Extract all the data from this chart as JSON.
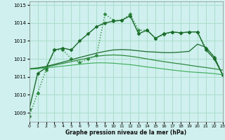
{
  "xlabel": "Graphe pression niveau de la mer (hPa)",
  "bg_color": "#cff0ee",
  "grid_color": "#aaddcc",
  "xlim": [
    0,
    23
  ],
  "ylim": [
    1008.5,
    1015.2
  ],
  "yticks": [
    1009,
    1010,
    1011,
    1012,
    1013,
    1014,
    1015
  ],
  "xticks": [
    0,
    1,
    2,
    3,
    4,
    5,
    6,
    7,
    8,
    9,
    10,
    11,
    12,
    13,
    14,
    15,
    16,
    17,
    18,
    19,
    20,
    21,
    22,
    23
  ],
  "series": [
    {
      "x": [
        0,
        1,
        2,
        3,
        4,
        5,
        6,
        7,
        8,
        9,
        10,
        11,
        12,
        13,
        14,
        15,
        16,
        17,
        18,
        19,
        20,
        21,
        22,
        23
      ],
      "y": [
        1008.8,
        1010.1,
        1011.4,
        1012.5,
        1012.5,
        1012.0,
        1011.8,
        1012.0,
        1012.2,
        1014.5,
        1014.15,
        1014.15,
        1014.5,
        1013.6,
        1013.6,
        1013.15,
        1013.35,
        1013.5,
        1013.45,
        1013.5,
        1013.5,
        1012.6,
        1012.1,
        1011.1
      ],
      "marker": "D",
      "linestyle": ":",
      "color": "#2d8a3e",
      "linewidth": 1.0,
      "markersize": 2.5
    },
    {
      "x": [
        0,
        1,
        2,
        3,
        4,
        5,
        6,
        7,
        8,
        9,
        10,
        11,
        12,
        13,
        14,
        15,
        16,
        17,
        18,
        19,
        20,
        21,
        22,
        23
      ],
      "y": [
        1009.2,
        1011.2,
        1011.5,
        1012.5,
        1012.6,
        1012.5,
        1013.0,
        1013.4,
        1013.8,
        1014.0,
        1014.1,
        1014.15,
        1014.4,
        1013.4,
        1013.6,
        1013.15,
        1013.4,
        1013.5,
        1013.45,
        1013.5,
        1013.5,
        1012.5,
        1012.0,
        1011.1
      ],
      "marker": "D",
      "linestyle": "-",
      "color": "#1a6b2a",
      "linewidth": 1.0,
      "markersize": 2.5
    },
    {
      "x": [
        0,
        1,
        2,
        3,
        4,
        5,
        6,
        7,
        8,
        9,
        10,
        11,
        12,
        13,
        14,
        15,
        16,
        17,
        18,
        19,
        20,
        21,
        22,
        23
      ],
      "y": [
        1011.45,
        1011.48,
        1011.55,
        1011.65,
        1011.75,
        1011.85,
        1011.95,
        1012.05,
        1012.15,
        1012.2,
        1012.22,
        1012.2,
        1012.15,
        1012.08,
        1012.0,
        1011.92,
        1011.85,
        1011.78,
        1011.72,
        1011.65,
        1011.58,
        1011.52,
        1011.45,
        1011.38
      ],
      "marker": null,
      "linestyle": "-",
      "color": "#2d8a3e",
      "linewidth": 0.9,
      "markersize": 0
    },
    {
      "x": [
        0,
        1,
        2,
        3,
        4,
        5,
        6,
        7,
        8,
        9,
        10,
        11,
        12,
        13,
        14,
        15,
        16,
        17,
        18,
        19,
        20,
        21,
        22,
        23
      ],
      "y": [
        1011.45,
        1011.5,
        1011.58,
        1011.7,
        1011.82,
        1011.95,
        1012.08,
        1012.2,
        1012.32,
        1012.42,
        1012.5,
        1012.52,
        1012.5,
        1012.45,
        1012.4,
        1012.38,
        1012.35,
        1012.35,
        1012.38,
        1012.42,
        1012.82,
        1012.65,
        1012.1,
        1011.1
      ],
      "marker": null,
      "linestyle": "-",
      "color": "#1a6b2a",
      "linewidth": 0.9,
      "markersize": 0
    },
    {
      "x": [
        0,
        1,
        2,
        3,
        4,
        5,
        6,
        7,
        8,
        9,
        10,
        11,
        12,
        13,
        14,
        15,
        16,
        17,
        18,
        19,
        20,
        21,
        22,
        23
      ],
      "y": [
        1011.42,
        1011.45,
        1011.5,
        1011.55,
        1011.6,
        1011.65,
        1011.7,
        1011.75,
        1011.78,
        1011.78,
        1011.76,
        1011.72,
        1011.68,
        1011.62,
        1011.55,
        1011.5,
        1011.44,
        1011.38,
        1011.33,
        1011.28,
        1011.25,
        1011.22,
        1011.18,
        1011.12
      ],
      "marker": null,
      "linestyle": "-",
      "color": "#3aaa55",
      "linewidth": 0.8,
      "markersize": 0
    }
  ]
}
